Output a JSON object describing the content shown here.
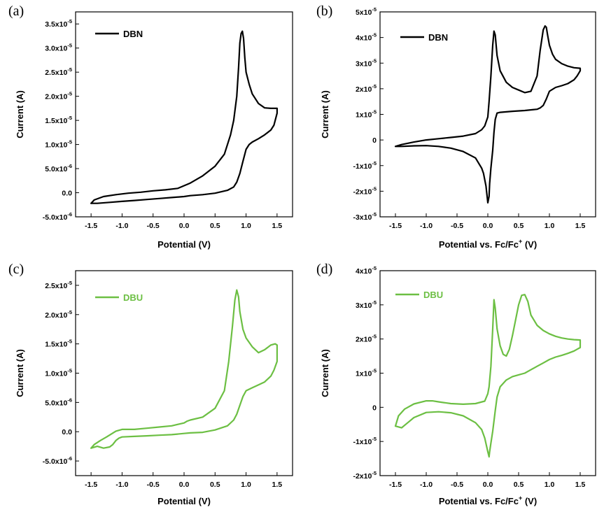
{
  "colors": {
    "dbn": "#000000",
    "dbu": "#6cbf43"
  },
  "chart_data": [
    {
      "type": "line",
      "panel": "(a)",
      "xlabel": "Potential (V)",
      "ylabel": "Current (A)",
      "xlim": [
        -1.75,
        1.75
      ],
      "ylim": [
        -5e-06,
        3.75e-05
      ],
      "x_ticks": [
        -1.5,
        -1.0,
        -0.5,
        0.0,
        0.5,
        1.0,
        1.5
      ],
      "x_tick_labels": [
        "-1.5",
        "-1.0",
        "-0.5",
        "0.0",
        "0.5",
        "1.0",
        "1.5"
      ],
      "y_ticks": [
        -5e-06,
        0,
        5e-06,
        1e-05,
        1.5e-05,
        2e-05,
        2.5e-05,
        3e-05,
        3.5e-05
      ],
      "y_tick_labels": [
        [
          "-5.0x10",
          "-6"
        ],
        [
          "0.0",
          ""
        ],
        [
          "5.0x10",
          "-6"
        ],
        [
          "1.0x10",
          "-5"
        ],
        [
          "1.5x10",
          "-5"
        ],
        [
          "2.0x10",
          "-5"
        ],
        [
          "2.5x10",
          "-5"
        ],
        [
          "3.0x10",
          "-5"
        ],
        [
          "3.5x10",
          "-5"
        ]
      ],
      "legend_position": "top-left",
      "series": [
        {
          "name": "DBN",
          "color_key": "dbn",
          "x": [
            -1.5,
            -1.45,
            -1.3,
            -1.1,
            -0.9,
            -0.7,
            -0.5,
            -0.3,
            -0.1,
            0.1,
            0.3,
            0.5,
            0.65,
            0.75,
            0.8,
            0.85,
            0.88,
            0.9,
            0.92,
            0.94,
            0.96,
            0.98,
            1.0,
            1.05,
            1.1,
            1.2,
            1.3,
            1.4,
            1.47,
            1.5,
            1.5,
            1.48,
            1.45,
            1.4,
            1.3,
            1.2,
            1.1,
            1.05,
            1.0,
            0.95,
            0.9,
            0.85,
            0.8,
            0.7,
            0.5,
            0.3,
            0.1,
            0.0,
            -0.2,
            -0.4,
            -0.6,
            -0.8,
            -1.0,
            -1.2,
            -1.4,
            -1.5
          ],
          "y": [
            -2.2e-06,
            -1.5e-06,
            -8e-07,
            -4e-07,
            -1e-07,
            1e-07,
            4e-07,
            6e-07,
            9e-07,
            2e-06,
            3.5e-06,
            5.5e-06,
            8e-06,
            1.2e-05,
            1.5e-05,
            2e-05,
            2.6e-05,
            3.1e-05,
            3.3e-05,
            3.35e-05,
            3.2e-05,
            2.8e-05,
            2.5e-05,
            2.25e-05,
            2.05e-05,
            1.85e-05,
            1.76e-05,
            1.75e-05,
            1.75e-05,
            1.75e-05,
            1.65e-05,
            1.55e-05,
            1.4e-05,
            1.3e-05,
            1.2e-05,
            1.12e-05,
            1.05e-05,
            1e-05,
            9e-06,
            6.5e-06,
            4e-06,
            2.2e-06,
            1.2e-06,
            5e-07,
            -1e-07,
            -4e-07,
            -6e-07,
            -8e-07,
            -1e-06,
            -1.2e-06,
            -1.4e-06,
            -1.6e-06,
            -1.8e-06,
            -2e-06,
            -2.2e-06,
            -2.2e-06
          ]
        }
      ]
    },
    {
      "type": "line",
      "panel": "(b)",
      "xlabel": "Potential vs. Fc/Fc",
      "xlabel_sup": "+",
      "xlabel_suffix": " (V)",
      "ylabel": "Current (A)",
      "xlim": [
        -1.75,
        1.75
      ],
      "ylim": [
        -3e-05,
        5e-05
      ],
      "x_ticks": [
        -1.5,
        -1.0,
        -0.5,
        0.0,
        0.5,
        1.0,
        1.5
      ],
      "x_tick_labels": [
        "-1.5",
        "-1.0",
        "-0.5",
        "0.0",
        "0.5",
        "1.0",
        "1.5"
      ],
      "y_ticks": [
        -3e-05,
        -2e-05,
        -1e-05,
        0,
        1e-05,
        2e-05,
        3e-05,
        4e-05,
        5e-05
      ],
      "y_tick_labels": [
        [
          "-3x10",
          "-5"
        ],
        [
          "-2x10",
          "-5"
        ],
        [
          "-1x10",
          "-5"
        ],
        [
          "0",
          ""
        ],
        [
          "1x10",
          "-5"
        ],
        [
          "2x10",
          "-5"
        ],
        [
          "3x10",
          "-5"
        ],
        [
          "4x10",
          "-5"
        ],
        [
          "5x10",
          "-5"
        ]
      ],
      "legend_position": "top-left",
      "series": [
        {
          "name": "DBN",
          "color_key": "dbn",
          "x": [
            -1.5,
            -1.4,
            -1.2,
            -1.0,
            -0.8,
            -0.6,
            -0.4,
            -0.2,
            -0.1,
            -0.05,
            0.0,
            0.02,
            0.05,
            0.08,
            0.1,
            0.12,
            0.15,
            0.2,
            0.3,
            0.4,
            0.5,
            0.6,
            0.7,
            0.8,
            0.85,
            0.9,
            0.93,
            0.95,
            0.97,
            1.0,
            1.05,
            1.1,
            1.2,
            1.3,
            1.4,
            1.5,
            1.5,
            1.45,
            1.4,
            1.3,
            1.2,
            1.1,
            1.0,
            0.95,
            0.9,
            0.85,
            0.8,
            0.6,
            0.4,
            0.2,
            0.15,
            0.12,
            0.1,
            0.08,
            0.05,
            0.03,
            0.02,
            0.0,
            -0.03,
            -0.07,
            -0.1,
            -0.2,
            -0.4,
            -0.6,
            -0.8,
            -1.0,
            -1.2,
            -1.4,
            -1.5
          ],
          "y": [
            -2.5e-06,
            -1.8e-06,
            -8e-07,
            0,
            5e-07,
            1e-06,
            1.5e-06,
            2.5e-06,
            4e-06,
            5.5e-06,
            9e-06,
            1.5e-05,
            2.5e-05,
            3.7e-05,
            4.25e-05,
            4.1e-05,
            3.3e-05,
            2.7e-05,
            2.25e-05,
            2.05e-05,
            1.95e-05,
            1.85e-05,
            1.9e-05,
            2.5e-05,
            3.5e-05,
            4.3e-05,
            4.45e-05,
            4.4e-05,
            4.1e-05,
            3.7e-05,
            3.35e-05,
            3.15e-05,
            2.98e-05,
            2.88e-05,
            2.82e-05,
            2.8e-05,
            2.7e-05,
            2.5e-05,
            2.35e-05,
            2.2e-05,
            2.12e-05,
            2.05e-05,
            1.9e-05,
            1.6e-05,
            1.35e-05,
            1.25e-05,
            1.2e-05,
            1.15e-05,
            1.12e-05,
            1.08e-05,
            1.05e-05,
            8e-06,
            3e-06,
            -4e-06,
            -1.1e-05,
            -1.7e-05,
            -2.2e-05,
            -2.45e-05,
            -1.8e-05,
            -1.3e-05,
            -1.1e-05,
            -7e-06,
            -4.5e-06,
            -3.2e-06,
            -2.5e-06,
            -2.2e-06,
            -2.3e-06,
            -2.5e-06,
            -2.5e-06
          ]
        }
      ]
    },
    {
      "type": "line",
      "panel": "(c)",
      "xlabel": "Potential (V)",
      "ylabel": "Current (A)",
      "xlim": [
        -1.75,
        1.75
      ],
      "ylim": [
        -7.5e-06,
        2.75e-05
      ],
      "x_ticks": [
        -1.5,
        -1.0,
        -0.5,
        0.0,
        0.5,
        1.0,
        1.5
      ],
      "x_tick_labels": [
        "-1.5",
        "-1.0",
        "-0.5",
        "0.0",
        "0.5",
        "1.0",
        "1.5"
      ],
      "y_ticks": [
        -5e-06,
        0,
        5e-06,
        1e-05,
        1.5e-05,
        2e-05,
        2.5e-05
      ],
      "y_tick_labels": [
        [
          "-5.0x10",
          "-6"
        ],
        [
          "0.0",
          ""
        ],
        [
          "5.0x10",
          "-6"
        ],
        [
          "1.0x10",
          "-5"
        ],
        [
          "1.5x10",
          "-5"
        ],
        [
          "2.0x10",
          "-5"
        ],
        [
          "2.5x10",
          "-5"
        ]
      ],
      "legend_position": "top-left",
      "series": [
        {
          "name": "DBU",
          "color_key": "dbu",
          "x": [
            -1.5,
            -1.45,
            -1.35,
            -1.25,
            -1.1,
            -1.0,
            -0.8,
            -0.6,
            -0.4,
            -0.2,
            0.0,
            0.05,
            0.1,
            0.3,
            0.5,
            0.65,
            0.72,
            0.78,
            0.82,
            0.85,
            0.88,
            0.9,
            0.95,
            1.0,
            1.1,
            1.2,
            1.3,
            1.4,
            1.47,
            1.5,
            1.5,
            1.45,
            1.4,
            1.3,
            1.2,
            1.1,
            1.0,
            0.95,
            0.9,
            0.85,
            0.8,
            0.7,
            0.5,
            0.3,
            0.1,
            0.0,
            -0.2,
            -0.4,
            -0.6,
            -0.8,
            -1.0,
            -1.05,
            -1.1,
            -1.15,
            -1.2,
            -1.3,
            -1.4,
            -1.5
          ],
          "y": [
            -2.8e-06,
            -2.2e-06,
            -1.5e-06,
            -9e-07,
            1e-07,
            4e-07,
            4e-07,
            6e-07,
            8e-07,
            1e-06,
            1.5e-06,
            1.8e-06,
            2e-06,
            2.5e-06,
            4e-06,
            7e-06,
            1.2e-05,
            1.8e-05,
            2.25e-05,
            2.42e-05,
            2.3e-05,
            2.05e-05,
            1.75e-05,
            1.6e-05,
            1.45e-05,
            1.35e-05,
            1.4e-05,
            1.48e-05,
            1.5e-05,
            1.48e-05,
            1.2e-05,
            1.05e-05,
            9.5e-06,
            8.5e-06,
            8e-06,
            7.5e-06,
            7e-06,
            6e-06,
            4.5e-06,
            3e-06,
            2e-06,
            1e-06,
            3e-07,
            -1e-07,
            -2e-07,
            -3e-07,
            -5e-07,
            -6e-07,
            -7e-07,
            -8e-07,
            -9e-07,
            -1.1e-06,
            -1.5e-06,
            -2.2e-06,
            -2.6e-06,
            -2.8e-06,
            -2.5e-06,
            -2.8e-06
          ]
        }
      ]
    },
    {
      "type": "line",
      "panel": "(d)",
      "xlabel": "Potential vs. Fc/Fc",
      "xlabel_sup": "+",
      "xlabel_suffix": " (V)",
      "ylabel": "Current (A)",
      "xlim": [
        -1.75,
        1.75
      ],
      "ylim": [
        -2e-05,
        4e-05
      ],
      "x_ticks": [
        -1.5,
        -1.0,
        -0.5,
        0.0,
        0.5,
        1.0,
        1.5
      ],
      "x_tick_labels": [
        "-1.5",
        "-1.0",
        "-0.5",
        "0.0",
        "0.5",
        "1.0",
        "1.5"
      ],
      "y_ticks": [
        -2e-05,
        -1e-05,
        0,
        1e-05,
        2e-05,
        3e-05,
        4e-05
      ],
      "y_tick_labels": [
        [
          "-2x10",
          "-5"
        ],
        [
          "-1x10",
          "-5"
        ],
        [
          "0",
          ""
        ],
        [
          "1x10",
          "-5"
        ],
        [
          "2x10",
          "-5"
        ],
        [
          "3x10",
          "-5"
        ],
        [
          "4x10",
          "-5"
        ]
      ],
      "legend_position": "top-left",
      "series": [
        {
          "name": "DBU",
          "color_key": "dbu",
          "x": [
            -1.5,
            -1.45,
            -1.35,
            -1.2,
            -1.0,
            -0.9,
            -0.8,
            -0.6,
            -0.4,
            -0.2,
            -0.05,
            0.0,
            0.02,
            0.05,
            0.08,
            0.1,
            0.12,
            0.15,
            0.2,
            0.25,
            0.3,
            0.35,
            0.4,
            0.5,
            0.55,
            0.6,
            0.65,
            0.7,
            0.8,
            0.9,
            1.0,
            1.1,
            1.2,
            1.3,
            1.4,
            1.5,
            1.5,
            1.45,
            1.4,
            1.3,
            1.2,
            1.1,
            1.0,
            0.9,
            0.8,
            0.7,
            0.6,
            0.5,
            0.4,
            0.3,
            0.2,
            0.15,
            0.12,
            0.1,
            0.08,
            0.05,
            0.03,
            0.02,
            0.0,
            -0.05,
            -0.1,
            -0.2,
            -0.4,
            -0.6,
            -0.8,
            -1.0,
            -1.2,
            -1.3,
            -1.4,
            -1.5
          ],
          "y": [
            -5.5e-06,
            -2.5e-06,
            -5e-07,
            1e-06,
            1.9e-06,
            1.9e-06,
            1.6e-06,
            1.1e-06,
            9e-07,
            1.1e-06,
            1.8e-06,
            4e-06,
            6e-06,
            1.2e-05,
            2.3e-05,
            3.15e-05,
            2.9e-05,
            2.3e-05,
            1.8e-05,
            1.55e-05,
            1.5e-05,
            1.7e-05,
            2.1e-05,
            3e-05,
            3.28e-05,
            3.3e-05,
            3.1e-05,
            2.7e-05,
            2.4e-05,
            2.25e-05,
            2.15e-05,
            2.08e-05,
            2.03e-05,
            2e-05,
            1.98e-05,
            1.97e-05,
            1.75e-05,
            1.7e-05,
            1.65e-05,
            1.58e-05,
            1.52e-05,
            1.47e-05,
            1.4e-05,
            1.3e-05,
            1.2e-05,
            1.1e-05,
            1e-05,
            9.5e-06,
            9e-06,
            8e-06,
            6e-06,
            3e-06,
            -1e-06,
            -4e-06,
            -7e-06,
            -1.05e-05,
            -1.3e-05,
            -1.45e-05,
            -1.3e-05,
            -9e-06,
            -6.5e-06,
            -4.5e-06,
            -2.5e-06,
            -1.6e-06,
            -1.3e-06,
            -1.5e-06,
            -3e-06,
            -4.5e-06,
            -6e-06,
            -5.5e-06
          ]
        }
      ]
    }
  ]
}
